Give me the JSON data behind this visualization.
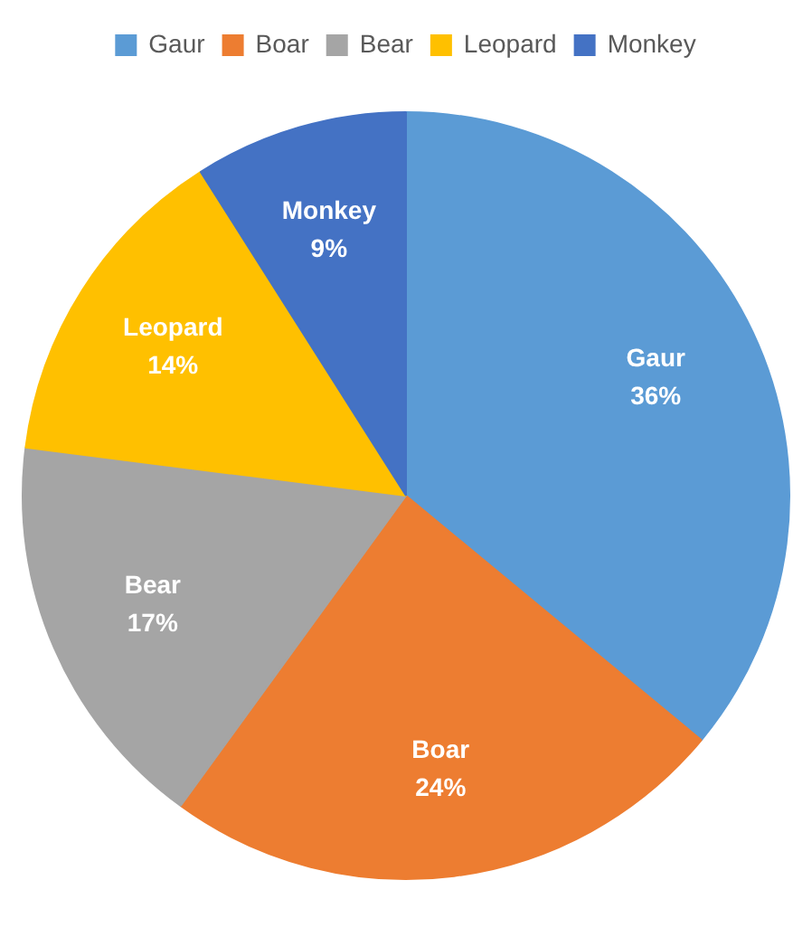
{
  "chart_data": {
    "type": "pie",
    "categories": [
      "Gaur",
      "Boar",
      "Bear",
      "Leopard",
      "Monkey"
    ],
    "values": [
      36,
      24,
      17,
      14,
      9
    ],
    "value_labels": [
      "36%",
      "24%",
      "17%",
      "14%",
      "9%"
    ],
    "colors": [
      "#5b9bd5",
      "#ed7d31",
      "#a5a5a5",
      "#ffc000",
      "#4472c4"
    ],
    "legend": "top"
  }
}
